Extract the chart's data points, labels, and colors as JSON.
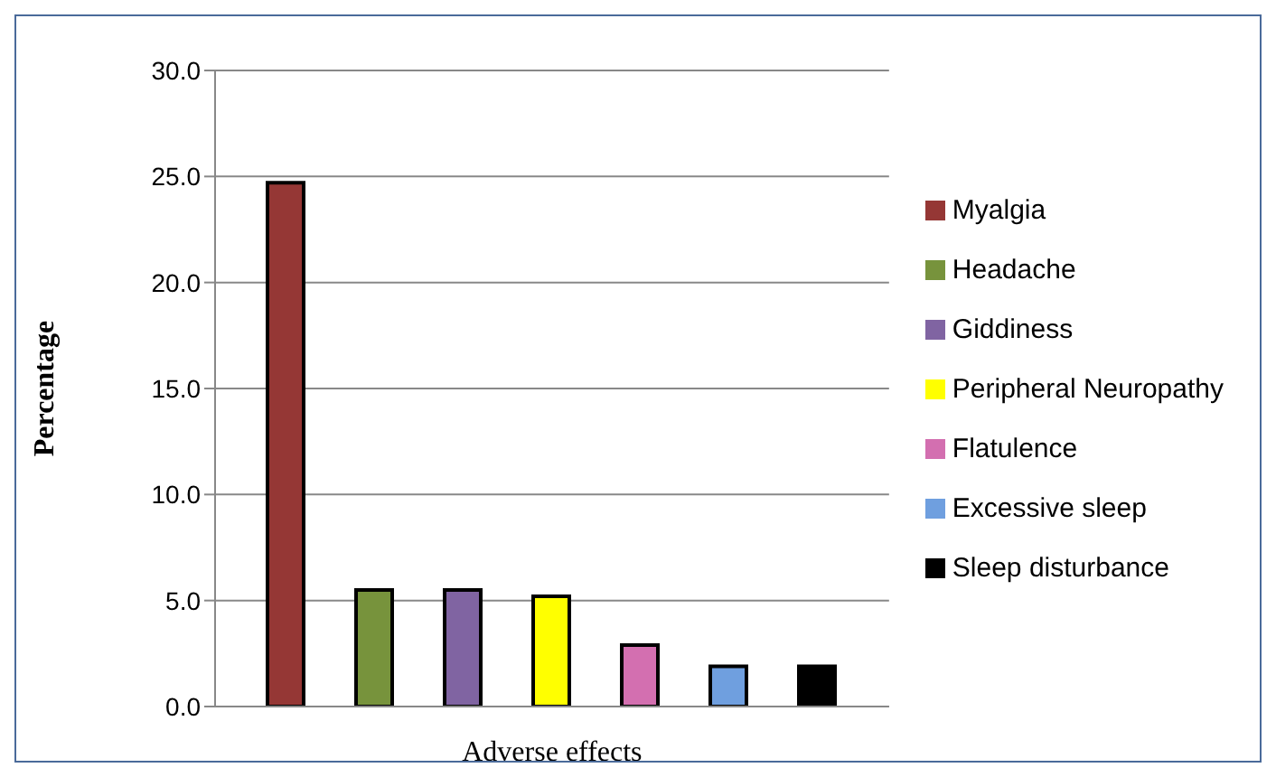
{
  "chart_data": {
    "type": "bar",
    "xlabel": "Adverse effects",
    "ylabel": "Percentage",
    "categories": [
      null
    ],
    "series": [
      {
        "name": "Myalgia",
        "color": "#953735",
        "values": [
          24.7
        ]
      },
      {
        "name": "Headache",
        "color": "#77933c",
        "values": [
          5.5
        ]
      },
      {
        "name": "Giddiness",
        "color": "#8064a2",
        "values": [
          5.5
        ]
      },
      {
        "name": "Peripheral Neuropathy",
        "color": "#ffff00",
        "values": [
          5.2
        ]
      },
      {
        "name": "Flatulence",
        "color": "#d36fb0",
        "values": [
          2.9
        ]
      },
      {
        "name": "Excessive sleep",
        "color": "#6f9fdf",
        "values": [
          1.9
        ]
      },
      {
        "name": "Sleep disturbance",
        "color": "#000000",
        "values": [
          1.9
        ]
      }
    ],
    "ylim": [
      0,
      30
    ],
    "yticks": [
      {
        "value": 0,
        "label": "0.0"
      },
      {
        "value": 5,
        "label": "5.0"
      },
      {
        "value": 10,
        "label": "10.0"
      },
      {
        "value": 15,
        "label": "15.0"
      },
      {
        "value": 20,
        "label": "20.0"
      },
      {
        "value": 25,
        "label": "25.0"
      },
      {
        "value": 30,
        "label": "30.0"
      }
    ],
    "grid": "y",
    "legend": "right"
  }
}
